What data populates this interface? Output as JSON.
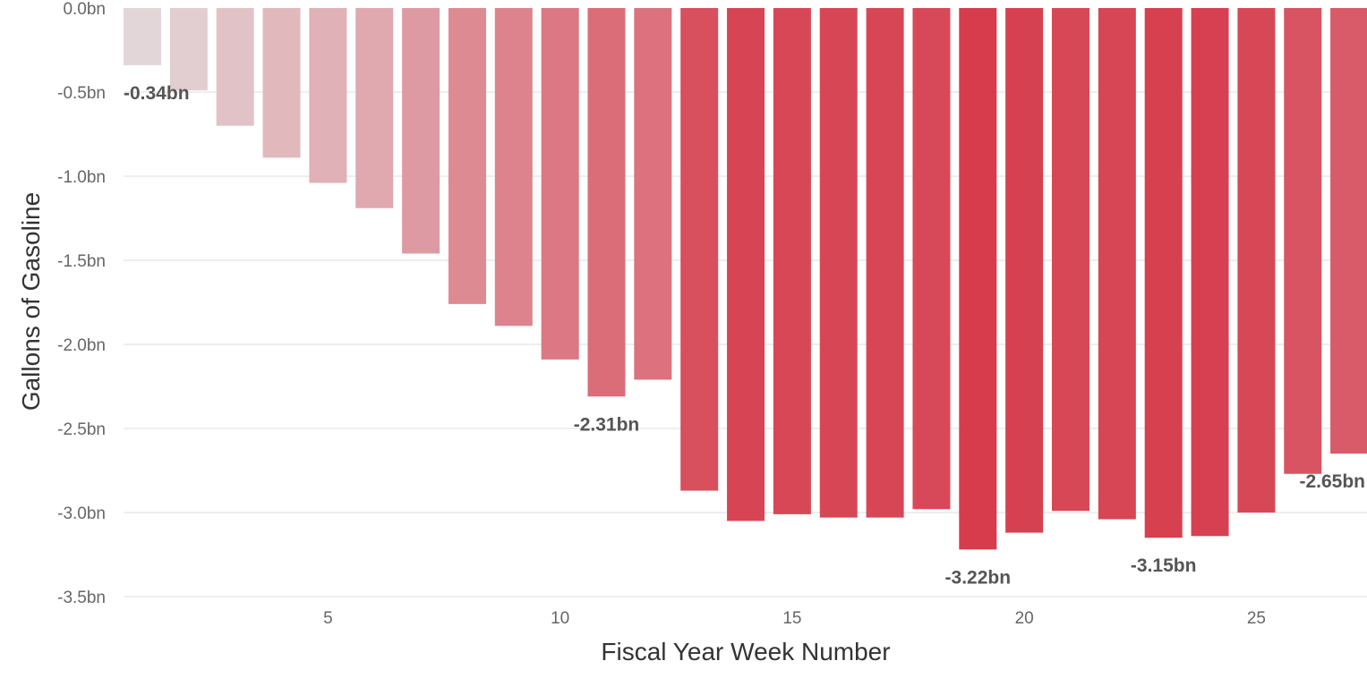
{
  "chart_data": {
    "type": "bar",
    "title": "",
    "xlabel": "Fiscal Year Week Number",
    "ylabel": "Gallons of Gasoline",
    "ylim": [
      -3.5,
      0
    ],
    "y_ticks": [
      0,
      -0.5,
      -1.0,
      -1.5,
      -2.0,
      -2.5,
      -3.0,
      -3.5
    ],
    "y_tick_labels": [
      "0.0bn",
      "-0.5bn",
      "-1.0bn",
      "-1.5bn",
      "-2.0bn",
      "-2.5bn",
      "-3.0bn",
      "-3.5bn"
    ],
    "x_ticks": [
      5,
      10,
      15,
      20,
      25
    ],
    "x_tick_labels": [
      "5",
      "10",
      "15",
      "20",
      "25"
    ],
    "grid": true,
    "legend": "none",
    "categories": [
      1,
      2,
      3,
      4,
      5,
      6,
      7,
      8,
      9,
      10,
      11,
      12,
      13,
      14,
      15,
      16,
      17,
      18,
      19,
      20,
      21,
      22,
      23,
      24,
      25,
      26,
      27
    ],
    "values": [
      -0.34,
      -0.49,
      -0.7,
      -0.89,
      -1.04,
      -1.19,
      -1.46,
      -1.76,
      -1.89,
      -2.09,
      -2.31,
      -2.21,
      -2.87,
      -3.05,
      -3.01,
      -3.03,
      -3.03,
      -2.98,
      -3.22,
      -3.12,
      -2.99,
      -3.04,
      -3.15,
      -3.14,
      -3.0,
      -2.77,
      -2.65
    ],
    "color_scale": {
      "low": "#e3d6d8",
      "high": "#d63c4c"
    },
    "data_labels": [
      {
        "week": 1,
        "text": "-0.34bn"
      },
      {
        "week": 11,
        "text": "-2.31bn"
      },
      {
        "week": 19,
        "text": "-3.22bn"
      },
      {
        "week": 23,
        "text": "-3.15bn"
      },
      {
        "week": 27,
        "text": "-2.65bn"
      }
    ]
  }
}
